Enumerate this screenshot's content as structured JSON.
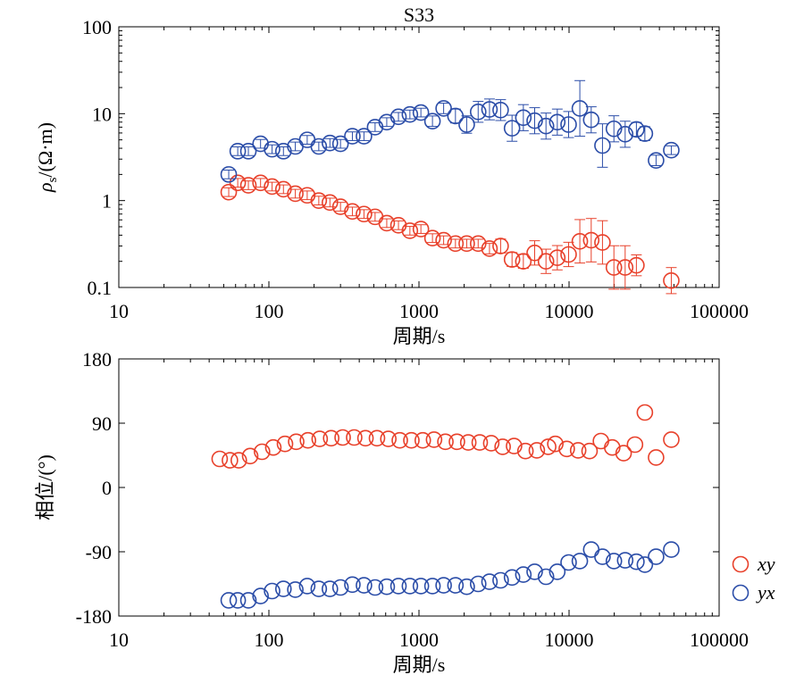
{
  "colors": {
    "xy": "#e8412b",
    "yx": "#2b4da8",
    "axis": "#000000"
  },
  "chart_data": [
    {
      "type": "scatter",
      "title": "S33",
      "xlabel": "周期/s",
      "ylabel_symbol": "ρ",
      "ylabel_sub": "s",
      "ylabel_unit": "/(Ω·m)",
      "x_scale": "log",
      "y_scale": "log",
      "xlim": [
        10,
        100000
      ],
      "ylim": [
        0.1,
        100
      ],
      "x_ticks": [
        10,
        100,
        1000,
        10000,
        100000
      ],
      "x_tick_labels": [
        "10",
        "100",
        "1000",
        "10000",
        "100000"
      ],
      "y_ticks": [
        0.1,
        1,
        10,
        100
      ],
      "y_tick_labels": [
        "0.1",
        "1",
        "10",
        "100"
      ],
      "legend": "none",
      "series": [
        {
          "key": "xy",
          "x": [
            54,
            62,
            73,
            88,
            105,
            125,
            150,
            180,
            215,
            255,
            300,
            360,
            430,
            510,
            610,
            730,
            870,
            1030,
            1230,
            1460,
            1750,
            2080,
            2480,
            2950,
            3500,
            4170,
            4960,
            5900,
            7020,
            8350,
            9930,
            11800,
            14050,
            16700,
            19900,
            23650,
            28100,
            48000
          ],
          "y": [
            1.25,
            1.6,
            1.5,
            1.6,
            1.45,
            1.35,
            1.2,
            1.15,
            1.0,
            0.95,
            0.85,
            0.75,
            0.7,
            0.65,
            0.55,
            0.52,
            0.45,
            0.47,
            0.37,
            0.35,
            0.32,
            0.32,
            0.32,
            0.28,
            0.3,
            0.21,
            0.2,
            0.25,
            0.2,
            0.22,
            0.24,
            0.34,
            0.35,
            0.33,
            0.17,
            0.17,
            0.18,
            0.12
          ],
          "err": [
            0.05,
            0.05,
            0.05,
            0.05,
            0.05,
            0.05,
            0.05,
            0.05,
            0.05,
            0.05,
            0.05,
            0.05,
            0.05,
            0.05,
            0.05,
            0.05,
            0.05,
            0.05,
            0.05,
            0.05,
            0.05,
            0.05,
            0.05,
            0.06,
            0.08,
            0.08,
            0.08,
            0.14,
            0.14,
            0.14,
            0.14,
            0.25,
            0.25,
            0.25,
            0.25,
            0.25,
            0.12,
            0.15
          ]
        },
        {
          "key": "yx",
          "x": [
            54,
            62,
            73,
            88,
            105,
            125,
            150,
            180,
            215,
            255,
            300,
            360,
            430,
            510,
            610,
            730,
            870,
            1030,
            1230,
            1460,
            1750,
            2080,
            2480,
            2950,
            3500,
            4170,
            4960,
            5900,
            7020,
            8350,
            9930,
            11800,
            14050,
            16700,
            19900,
            23650,
            28100,
            32000,
            38000,
            48000
          ],
          "y": [
            2.0,
            3.7,
            3.7,
            4.5,
            3.9,
            3.7,
            4.2,
            5.0,
            4.2,
            4.6,
            4.5,
            5.5,
            5.5,
            7.0,
            8.0,
            9.2,
            9.8,
            10.3,
            8.2,
            11.5,
            9.4,
            7.5,
            10.5,
            11.2,
            11.0,
            6.8,
            9.0,
            8.3,
            7.2,
            8.0,
            7.5,
            11.5,
            8.5,
            4.3,
            6.7,
            5.8,
            6.6,
            5.9,
            2.9,
            3.8
          ],
          "err": [
            0.05,
            0.05,
            0.05,
            0.05,
            0.05,
            0.05,
            0.05,
            0.05,
            0.05,
            0.05,
            0.05,
            0.05,
            0.05,
            0.05,
            0.05,
            0.05,
            0.05,
            0.05,
            0.06,
            0.06,
            0.08,
            0.1,
            0.12,
            0.12,
            0.12,
            0.15,
            0.15,
            0.15,
            0.15,
            0.15,
            0.15,
            0.32,
            0.15,
            0.25,
            0.15,
            0.15,
            0.08,
            0.08,
            0.06,
            0.05
          ]
        }
      ]
    },
    {
      "type": "scatter",
      "title": "",
      "xlabel": "周期/s",
      "ylabel": "相位/(°)",
      "x_scale": "log",
      "y_scale": "linear",
      "xlim": [
        10,
        100000
      ],
      "ylim": [
        -180,
        180
      ],
      "x_ticks": [
        10,
        100,
        1000,
        10000,
        100000
      ],
      "x_tick_labels": [
        "10",
        "100",
        "1000",
        "10000",
        "100000"
      ],
      "y_ticks": [
        -180,
        -90,
        0,
        90,
        180
      ],
      "y_tick_labels": [
        "-180",
        "-90",
        "0",
        "90",
        "180"
      ],
      "legend": "bottom-right outside",
      "series": [
        {
          "key": "xy",
          "name": "xy",
          "x": [
            47,
            55,
            63,
            75,
            90,
            107,
            128,
            152,
            182,
            218,
            260,
            310,
            370,
            440,
            525,
            625,
            745,
            890,
            1060,
            1260,
            1500,
            1790,
            2130,
            2540,
            3030,
            3610,
            4300,
            5120,
            6100,
            7260,
            8100,
            9650,
            11500,
            13700,
            16300,
            19400,
            23100,
            27500,
            32000,
            38000,
            48000
          ],
          "y": [
            40,
            38,
            38,
            44,
            50,
            56,
            61,
            64,
            66,
            68,
            69,
            70,
            70,
            69,
            69,
            68,
            66,
            66,
            66,
            67,
            64,
            64,
            63,
            63,
            62,
            57,
            58,
            51,
            52,
            57,
            61,
            54,
            52,
            51,
            65,
            56,
            48,
            60,
            105,
            42,
            67
          ]
        },
        {
          "key": "yx",
          "name": "yx",
          "x": [
            54,
            62,
            73,
            88,
            105,
            125,
            150,
            180,
            215,
            255,
            300,
            360,
            430,
            510,
            610,
            730,
            870,
            1030,
            1230,
            1460,
            1750,
            2080,
            2480,
            2950,
            3500,
            4170,
            4960,
            5900,
            7020,
            8350,
            9930,
            11800,
            14050,
            16700,
            19900,
            23650,
            28100,
            32000,
            38000,
            48000
          ],
          "y": [
            -158,
            -158,
            -158,
            -152,
            -145,
            -142,
            -143,
            -138,
            -142,
            -142,
            -140,
            -136,
            -137,
            -140,
            -139,
            -138,
            -138,
            -138,
            -138,
            -137,
            -137,
            -139,
            -135,
            -132,
            -130,
            -126,
            -122,
            -118,
            -125,
            -118,
            -105,
            -103,
            -87,
            -97,
            -103,
            -102,
            -104,
            -108,
            -97,
            -87
          ]
        }
      ]
    }
  ]
}
